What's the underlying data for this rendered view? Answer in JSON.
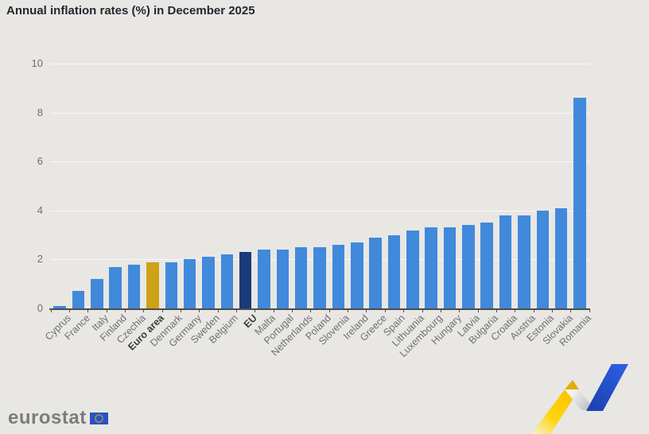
{
  "header": {
    "title": "Annual inflation rates (%) in December 2025"
  },
  "chart_data": {
    "type": "bar",
    "title": "Annual inflation rates (%) in December 2025",
    "xlabel": "",
    "ylabel": "",
    "ylim": [
      0,
      10
    ],
    "yticks": [
      0,
      2,
      4,
      6,
      8,
      10
    ],
    "grid": "faint white horizontal gridlines at each y tick",
    "legend": "none",
    "categories": [
      "Cyprus",
      "France",
      "Italy",
      "Finland",
      "Czechia",
      "Euro area",
      "Denmark",
      "Germany",
      "Sweden",
      "Belgium",
      "EU",
      "Malta",
      "Portugal",
      "Netherlands",
      "Poland",
      "Slovenia",
      "Ireland",
      "Greece",
      "Spain",
      "Lithuania",
      "Luxembourg",
      "Hungary",
      "Latvia",
      "Bulgaria",
      "Croatia",
      "Austria",
      "Estonia",
      "Slovakia",
      "Romania"
    ],
    "values": [
      0.1,
      0.7,
      1.2,
      1.7,
      1.8,
      1.9,
      1.9,
      2.0,
      2.1,
      2.2,
      2.3,
      2.4,
      2.4,
      2.5,
      2.5,
      2.6,
      2.7,
      2.9,
      3.0,
      3.2,
      3.3,
      3.3,
      3.4,
      3.5,
      3.8,
      3.8,
      4.0,
      4.1,
      8.6
    ],
    "styles": [
      "country",
      "country",
      "country",
      "country",
      "country",
      "euro_area",
      "country",
      "country",
      "country",
      "country",
      "eu",
      "country",
      "country",
      "country",
      "country",
      "country",
      "country",
      "country",
      "country",
      "country",
      "country",
      "country",
      "country",
      "country",
      "country",
      "country",
      "country",
      "country",
      "country"
    ],
    "bar_colors": {
      "country": "#4189DB",
      "euro_area": "#CEA116",
      "eu": "#1A3A7A"
    }
  },
  "footer": {
    "logo_text": "eurostat"
  },
  "colors": {
    "background": "#e8e7e4",
    "title_text": "#26262e",
    "axis": "#4d4d4d",
    "tick_label": "#6f6f6f",
    "emphasis_label": "#3c3c3c",
    "gridline": "rgba(255,255,255,0.65)",
    "flag_blue": "#2A53C2",
    "flag_stars": "#FFCC00",
    "ribbon_yellow": "#FFD400",
    "ribbon_blue": "#2353CC",
    "ribbon_gray": "#c9c9c9"
  }
}
